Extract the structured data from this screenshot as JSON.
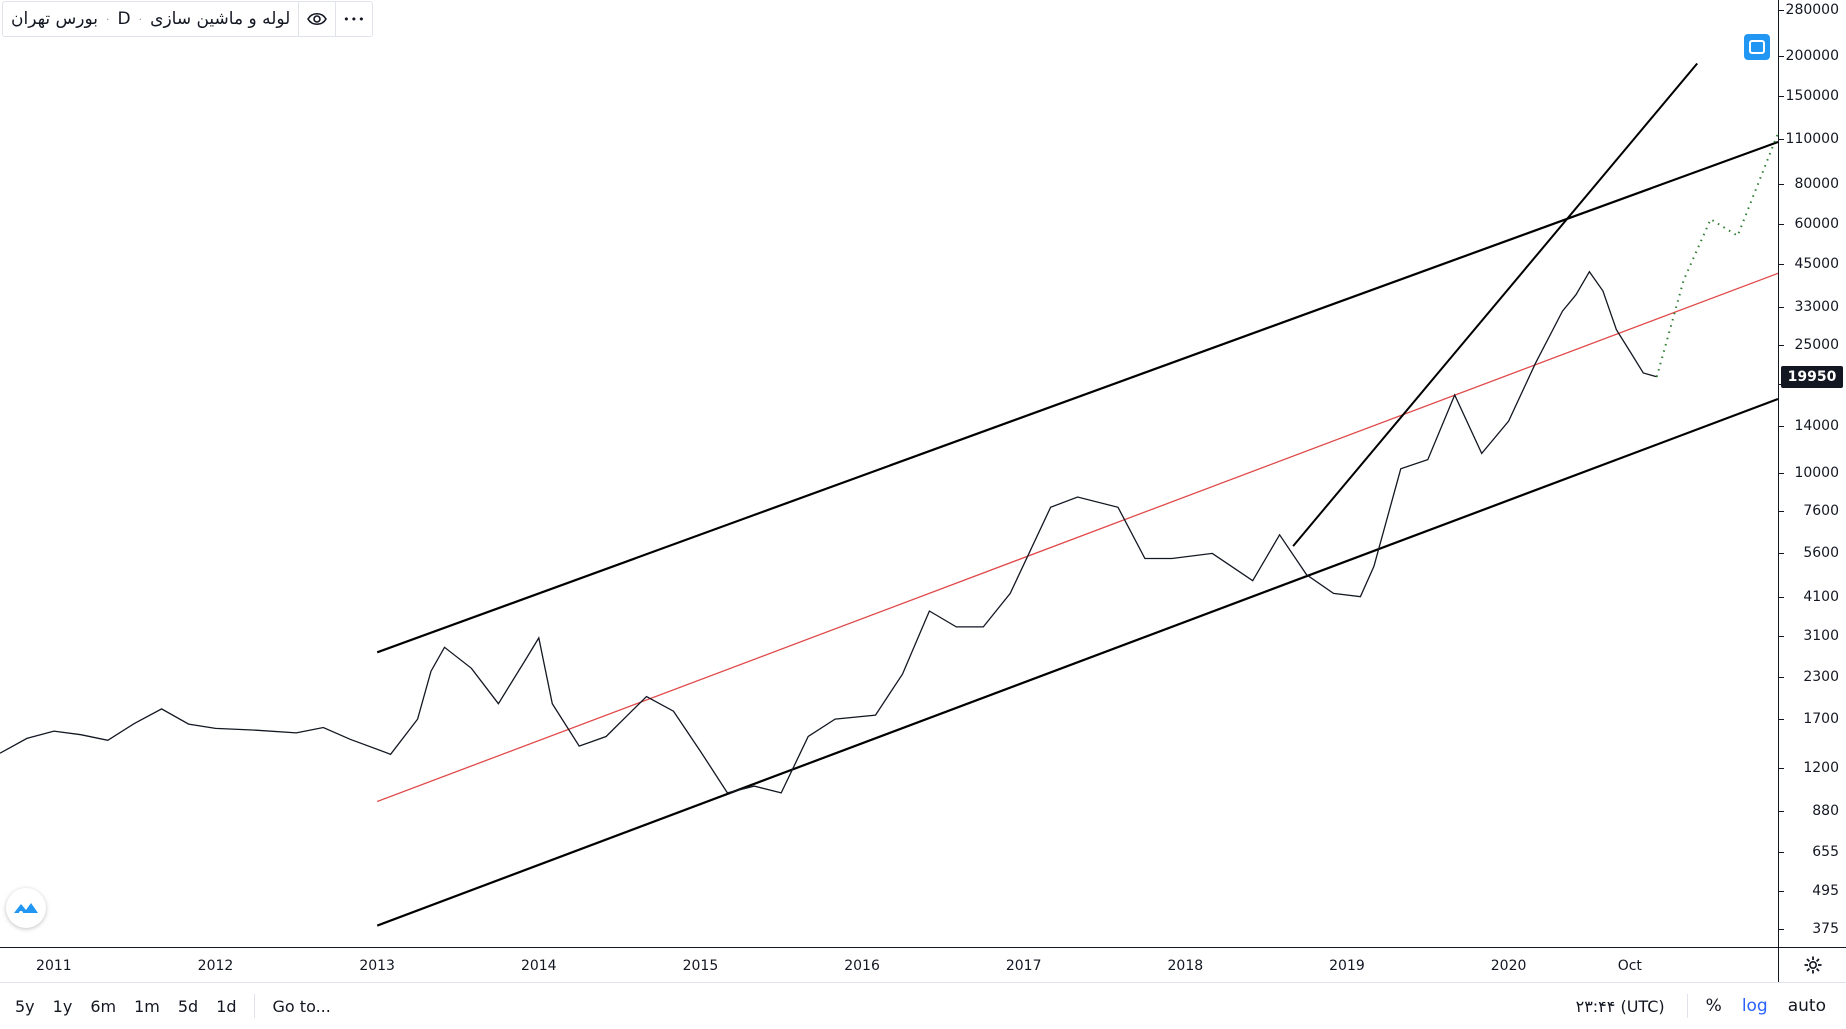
{
  "legend": {
    "symbol_name": "لوله و ماشین سازی",
    "interval": "D",
    "exchange": "بورس تهران",
    "eye_icon": "eye-icon",
    "more_icon": "more-horizontal-icon",
    "more_glyph": "•••"
  },
  "price_axis": {
    "labels": [
      "280000",
      "200000",
      "150000",
      "110000",
      "80000",
      "60000",
      "45000",
      "33000",
      "25000",
      "19000",
      "14000",
      "10000",
      "7600",
      "5600",
      "4100",
      "3100",
      "2300",
      "1700",
      "1200",
      "880",
      "655",
      "495",
      "375"
    ],
    "last_price": "19950"
  },
  "time_axis": {
    "labels": [
      "2011",
      "2012",
      "2013",
      "2014",
      "2015",
      "2016",
      "2017",
      "2018",
      "2019",
      "2020",
      "Oct"
    ]
  },
  "bottom_bar": {
    "ranges": [
      "5y",
      "1y",
      "6m",
      "1m",
      "5d",
      "1d"
    ],
    "goto_label": "Go to...",
    "clock": "۲۳:۴۴ (UTC)",
    "percent_label": "%",
    "log_label": "log",
    "auto_label": "auto"
  },
  "icons": {
    "settings": "gear-icon",
    "tv_logo": "tradingview-logo-icon",
    "fullscreen": "screenshot-icon"
  },
  "colors": {
    "price_line": "#131722",
    "channel_lines": "#000000",
    "midline": "#e04a4a",
    "projection": "#2e7d32",
    "accent": "#2962ff"
  },
  "chart_data": {
    "type": "line",
    "scale": "log",
    "x_range": [
      "2010-09",
      "2021-09"
    ],
    "y_range": [
      330,
      300000
    ],
    "last_price": 19950,
    "series": [
      {
        "values": [
          [
            "2010-09",
            1330
          ],
          [
            "2010-11",
            1480
          ],
          [
            "2011-01",
            1560
          ],
          [
            "2011-03",
            1520
          ],
          [
            "2011-05",
            1460
          ],
          [
            "2011-07",
            1650
          ],
          [
            "2011-09",
            1830
          ],
          [
            "2011-11",
            1640
          ],
          [
            "2012-01",
            1590
          ],
          [
            "2012-04",
            1570
          ],
          [
            "2012-07",
            1540
          ],
          [
            "2012-09",
            1600
          ],
          [
            "2012-11",
            1470
          ],
          [
            "2013-02",
            1320
          ],
          [
            "2013-04",
            1700
          ],
          [
            "2013-05",
            2400
          ],
          [
            "2013-06",
            2850
          ],
          [
            "2013-08",
            2450
          ],
          [
            "2013-10",
            1900
          ],
          [
            "2013-12",
            2600
          ],
          [
            "2014-01",
            3050
          ],
          [
            "2014-02",
            1900
          ],
          [
            "2014-04",
            1400
          ],
          [
            "2014-06",
            1500
          ],
          [
            "2014-09",
            2000
          ],
          [
            "2014-11",
            1800
          ],
          [
            "2015-01",
            1350
          ],
          [
            "2015-03",
            1000
          ],
          [
            "2015-05",
            1050
          ],
          [
            "2015-07",
            1000
          ],
          [
            "2015-09",
            1500
          ],
          [
            "2015-11",
            1700
          ],
          [
            "2016-02",
            1750
          ],
          [
            "2016-04",
            2350
          ],
          [
            "2016-06",
            3700
          ],
          [
            "2016-08",
            3300
          ],
          [
            "2016-10",
            3300
          ],
          [
            "2016-12",
            4200
          ],
          [
            "2017-03",
            7800
          ],
          [
            "2017-05",
            8400
          ],
          [
            "2017-08",
            7800
          ],
          [
            "2017-10",
            5400
          ],
          [
            "2017-12",
            5400
          ],
          [
            "2018-03",
            5600
          ],
          [
            "2018-06",
            4600
          ],
          [
            "2018-08",
            6400
          ],
          [
            "2018-10",
            4800
          ],
          [
            "2018-12",
            4200
          ],
          [
            "2019-02",
            4100
          ],
          [
            "2019-03",
            5100
          ],
          [
            "2019-05",
            10300
          ],
          [
            "2019-07",
            11000
          ],
          [
            "2019-09",
            17500
          ],
          [
            "2019-11",
            11500
          ],
          [
            "2020-01",
            14500
          ],
          [
            "2020-03",
            22000
          ],
          [
            "2020-05",
            32000
          ],
          [
            "2020-06",
            36000
          ],
          [
            "2020-07",
            42500
          ],
          [
            "2020-08",
            37000
          ],
          [
            "2020-09",
            28000
          ],
          [
            "2020-10",
            24000
          ],
          [
            "2020-11",
            20500
          ],
          [
            "2020-12",
            19950
          ]
        ]
      }
    ],
    "drawings": {
      "upper_channel": [
        [
          "2013-01",
          2750
        ],
        [
          "2021-09",
          108000
        ]
      ],
      "midline": [
        [
          "2013-01",
          940
        ],
        [
          "2021-09",
          42000
        ]
      ],
      "lower_channel": [
        [
          "2013-01",
          385
        ],
        [
          "2021-09",
          17000
        ]
      ],
      "steep_trendline": [
        [
          "2018-09",
          5900
        ],
        [
          "2021-03",
          190000
        ]
      ],
      "projection": [
        [
          "2020-12",
          19950
        ],
        [
          "2021-02",
          40000
        ],
        [
          "2021-04",
          62000
        ],
        [
          "2021-06",
          55000
        ],
        [
          "2021-09",
          115000
        ]
      ]
    }
  }
}
